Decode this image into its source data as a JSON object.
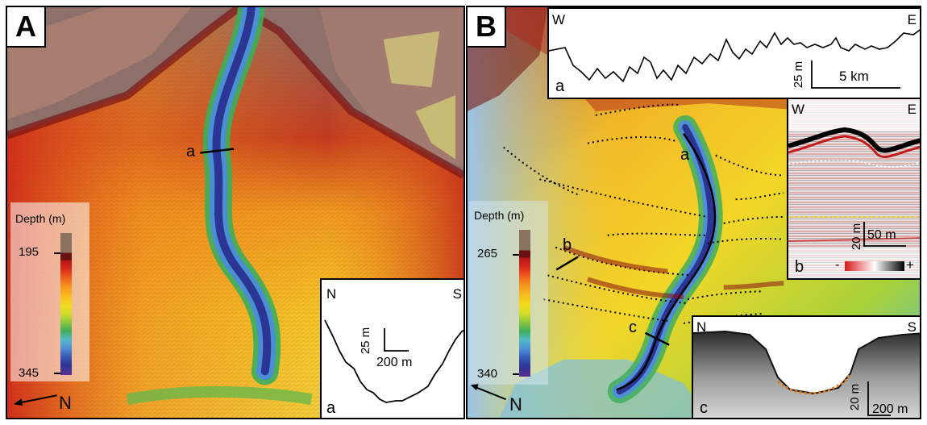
{
  "panel_a": {
    "letter": "A",
    "profile_label": "a",
    "legend": {
      "title": "Depth (m)",
      "min_label": "195",
      "max_label": "345"
    },
    "north_arrow_label": "N",
    "inset": {
      "left_label": "N",
      "right_label": "S",
      "scale_vertical": "25 m",
      "scale_horizontal": "200 m",
      "letter": "a"
    }
  },
  "panel_b": {
    "letter": "B",
    "profile_labels": {
      "a": "a",
      "b": "b",
      "c": "c"
    },
    "legend": {
      "title": "Depth (m)",
      "min_label": "265",
      "max_label": "340"
    },
    "north_arrow_label": "N",
    "inset_a": {
      "left_label": "W",
      "right_label": "E",
      "scale_vertical": "25 m",
      "scale_horizontal": "5 km",
      "letter": "a"
    },
    "inset_b": {
      "left_label": "W",
      "right_label": "E",
      "scale_vertical": "20 m",
      "scale_horizontal": "50 m",
      "polarity_negative": "-",
      "polarity_positive": "+",
      "letter": "b"
    },
    "inset_c": {
      "left_label": "N",
      "right_label": "S",
      "scale_vertical": "20 m",
      "scale_horizontal": "200 m",
      "letter": "c"
    }
  },
  "colors": {
    "depth_scale": [
      "#8a7261",
      "#6b1010",
      "#b01818",
      "#d8261c",
      "#ee5a1e",
      "#f5901e",
      "#f7bb1f",
      "#f2dc1e",
      "#d2dd2a",
      "#8cc63e",
      "#3fae5c",
      "#52b9c9",
      "#4d90d4",
      "#3a5bb8",
      "#2c3494",
      "#5a3190"
    ]
  }
}
